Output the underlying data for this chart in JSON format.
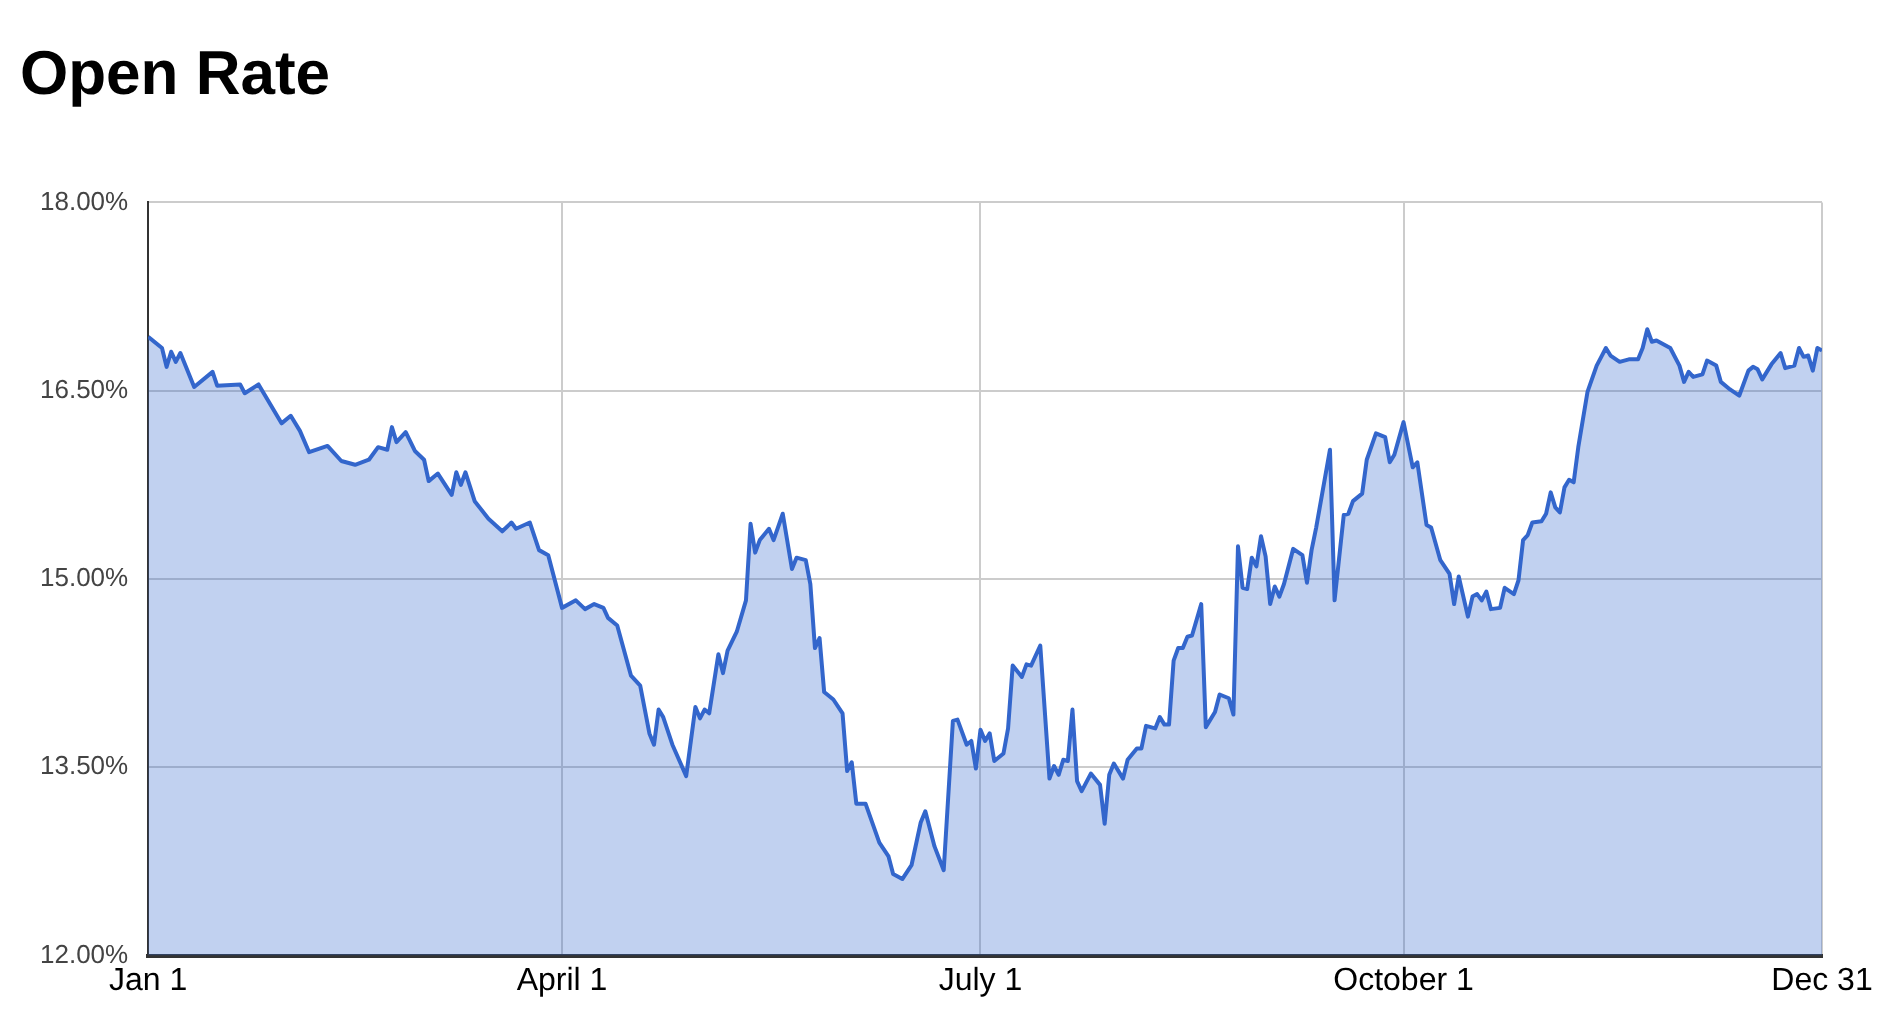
{
  "chart_data": {
    "type": "area",
    "title": "Open Rate",
    "xlim": [
      "--01-01",
      "--12-31"
    ],
    "xticks": [
      {
        "value": "--01-01",
        "label": "Jan 1"
      },
      {
        "value": "--04-01",
        "label": "April 1"
      },
      {
        "value": "--07-01",
        "label": "July 1"
      },
      {
        "value": "--10-01",
        "label": "October 1"
      },
      {
        "value": "--12-31",
        "label": "Dec 31"
      }
    ],
    "ylim": [
      12,
      18
    ],
    "yticks": [
      {
        "value": 12,
        "label": "12.00%"
      },
      {
        "value": 13.5,
        "label": "13.50%"
      },
      {
        "value": 15,
        "label": "15.00%"
      },
      {
        "value": 16.5,
        "label": "16.50%"
      },
      {
        "value": 18,
        "label": "18.00%"
      }
    ],
    "grid": true,
    "series": [
      {
        "color": "#3366cc",
        "x": [
          "--01-01",
          "--01-04",
          "--01-05",
          "--01-06",
          "--01-07",
          "--01-08",
          "--01-11",
          "--01-15",
          "--01-16",
          "--01-21",
          "--01-22",
          "--01-25",
          "--01-30",
          "--02-01",
          "--02-03",
          "--02-05",
          "--02-09",
          "--02-12",
          "--02-15",
          "--02-18",
          "--02-20",
          "--02-22",
          "--02-23",
          "--02-24",
          "--02-26",
          "--02-28",
          "--03-02",
          "--03-03",
          "--03-05",
          "--03-08",
          "--03-09",
          "--03-10",
          "--03-11",
          "--03-13",
          "--03-16",
          "--03-19",
          "--03-21",
          "--03-22",
          "--03-25",
          "--03-27",
          "--03-29",
          "--04-01",
          "--04-04",
          "--04-06",
          "--04-08",
          "--04-10",
          "--04-11",
          "--04-13",
          "--04-16",
          "--04-18",
          "--04-20",
          "--04-21",
          "--04-22",
          "--04-23",
          "--04-25",
          "--04-28",
          "--04-30",
          "--05-01",
          "--05-02",
          "--05-03",
          "--05-05",
          "--05-06",
          "--05-07",
          "--05-09",
          "--05-11",
          "--05-12",
          "--05-13",
          "--05-14",
          "--05-16",
          "--05-17",
          "--05-19",
          "--05-21",
          "--05-22",
          "--05-24",
          "--05-25",
          "--05-26",
          "--05-27",
          "--05-28",
          "--05-30",
          "--06-01",
          "--06-02",
          "--06-03",
          "--06-04",
          "--06-06",
          "--06-09",
          "--06-11",
          "--06-12",
          "--06-14",
          "--06-16",
          "--06-18",
          "--06-19",
          "--06-21",
          "--06-23",
          "--06-25",
          "--06-26",
          "--06-28",
          "--06-29",
          "--06-30",
          "--07-01",
          "--07-02",
          "--07-03",
          "--07-04",
          "--07-06",
          "--07-07",
          "--07-08",
          "--07-10",
          "--07-11",
          "--07-12",
          "--07-14",
          "--07-16",
          "--07-17",
          "--07-18",
          "--07-19",
          "--07-20",
          "--07-21",
          "--07-22",
          "--07-23",
          "--07-25",
          "--07-27",
          "--07-28",
          "--07-29",
          "--07-30",
          "--08-01",
          "--08-02",
          "--08-04",
          "--08-05",
          "--08-06",
          "--08-08",
          "--08-09",
          "--08-10",
          "--08-11",
          "--08-12",
          "--08-13",
          "--08-14",
          "--08-15",
          "--08-16",
          "--08-18",
          "--08-19",
          "--08-21",
          "--08-22",
          "--08-24",
          "--08-25",
          "--08-26",
          "--08-27",
          "--08-28",
          "--08-29",
          "--08-30",
          "--08-31",
          "--09-01",
          "--09-02",
          "--09-03",
          "--09-04",
          "--09-05",
          "--09-07",
          "--09-09",
          "--09-10",
          "--09-11",
          "--09-12",
          "--09-15",
          "--09-16",
          "--09-18",
          "--09-19",
          "--09-20",
          "--09-22",
          "--09-23",
          "--09-25",
          "--09-27",
          "--09-28",
          "--09-29",
          "--10-01",
          "--10-03",
          "--10-04",
          "--10-06",
          "--10-07",
          "--10-09",
          "--10-11",
          "--10-12",
          "--10-13",
          "--10-15",
          "--10-16",
          "--10-17",
          "--10-18",
          "--10-19",
          "--10-20",
          "--10-22",
          "--10-23",
          "--10-25",
          "--10-26",
          "--10-27",
          "--10-28",
          "--10-29",
          "--10-31",
          "--11-01",
          "--11-02",
          "--11-03",
          "--11-04",
          "--11-05",
          "--11-06",
          "--11-07",
          "--11-08",
          "--11-10",
          "--11-12",
          "--11-13",
          "--11-14",
          "--11-15",
          "--11-17",
          "--11-19",
          "--11-21",
          "--11-22",
          "--11-23",
          "--11-24",
          "--11-25",
          "--11-27",
          "--11-28",
          "--11-30",
          "--12-01",
          "--12-02",
          "--12-03",
          "--12-05",
          "--12-06",
          "--12-08",
          "--12-09",
          "--12-11",
          "--12-13",
          "--12-15",
          "--12-16",
          "--12-17",
          "--12-18",
          "--12-20",
          "--12-22",
          "--12-23",
          "--12-25",
          "--12-26",
          "--12-27",
          "--12-28",
          "--12-29",
          "--12-30",
          "--12-31"
        ],
        "values": [
          16.93,
          16.84,
          16.69,
          16.81,
          16.73,
          16.8,
          16.53,
          16.65,
          16.54,
          16.55,
          16.48,
          16.55,
          16.24,
          16.3,
          16.18,
          16.01,
          16.06,
          15.94,
          15.91,
          15.95,
          16.05,
          16.03,
          16.21,
          16.09,
          16.17,
          16.02,
          15.95,
          15.78,
          15.84,
          15.67,
          15.85,
          15.75,
          15.85,
          15.62,
          15.48,
          15.38,
          15.45,
          15.4,
          15.45,
          15.23,
          15.19,
          14.77,
          14.83,
          14.76,
          14.8,
          14.77,
          14.69,
          14.63,
          14.23,
          14.15,
          13.77,
          13.68,
          13.96,
          13.9,
          13.68,
          13.43,
          13.98,
          13.89,
          13.96,
          13.93,
          14.4,
          14.25,
          14.43,
          14.58,
          14.83,
          15.44,
          15.21,
          15.31,
          15.4,
          15.31,
          15.52,
          15.08,
          15.17,
          15.15,
          14.96,
          14.45,
          14.53,
          14.1,
          14.04,
          13.93,
          13.47,
          13.54,
          13.21,
          13.21,
          12.9,
          12.79,
          12.65,
          12.61,
          12.72,
          13.06,
          13.15,
          12.87,
          12.68,
          13.87,
          13.88,
          13.68,
          13.71,
          13.49,
          13.8,
          13.71,
          13.77,
          13.55,
          13.61,
          13.81,
          14.31,
          14.22,
          14.32,
          14.31,
          14.47,
          13.41,
          13.51,
          13.44,
          13.56,
          13.55,
          13.96,
          13.39,
          13.31,
          13.45,
          13.36,
          13.05,
          13.44,
          13.53,
          13.41,
          13.56,
          13.65,
          13.65,
          13.83,
          13.81,
          13.9,
          13.84,
          13.84,
          14.35,
          14.45,
          14.45,
          14.54,
          14.55,
          14.8,
          13.82,
          13.94,
          14.08,
          14.05,
          13.92,
          15.26,
          14.93,
          14.92,
          15.17,
          15.1,
          15.34,
          15.18,
          14.8,
          14.94,
          14.86,
          14.96,
          15.24,
          15.19,
          14.97,
          15.23,
          15.41,
          16.03,
          14.83,
          15.51,
          15.52,
          15.62,
          15.68,
          15.95,
          16.16,
          16.13,
          15.93,
          15.99,
          16.25,
          15.89,
          15.93,
          15.43,
          15.41,
          15.15,
          15.04,
          14.8,
          15.02,
          14.7,
          14.86,
          14.88,
          14.83,
          14.9,
          14.76,
          14.77,
          14.93,
          14.88,
          14.99,
          15.31,
          15.35,
          15.45,
          15.46,
          15.52,
          15.69,
          15.57,
          15.53,
          15.73,
          15.79,
          15.77,
          16.05,
          16.49,
          16.7,
          16.77,
          16.84,
          16.78,
          16.73,
          16.75,
          16.75,
          16.84,
          16.99,
          16.89,
          16.9,
          16.86,
          16.84,
          16.7,
          16.57,
          16.65,
          16.61,
          16.63,
          16.74,
          16.7,
          16.57,
          16.51,
          16.46,
          16.66,
          16.69,
          16.67,
          16.59,
          16.71,
          16.8,
          16.68,
          16.7,
          16.84,
          16.77,
          16.78,
          16.66,
          16.84,
          16.82
        ]
      }
    ]
  }
}
